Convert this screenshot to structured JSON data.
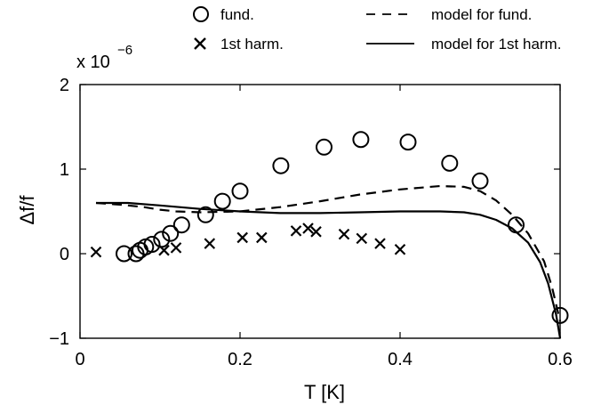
{
  "chart_data": {
    "type": "scatter",
    "title": "",
    "xlabel": "T [K]",
    "ylabel": "Δf/f",
    "xlim": [
      0,
      0.6
    ],
    "ylim": [
      -1,
      2
    ],
    "y_multiplier": {
      "base": "x 10",
      "exponent": "−6"
    },
    "x_ticks": [
      {
        "value": 0,
        "label": "0"
      },
      {
        "value": 0.2,
        "label": "0.2"
      },
      {
        "value": 0.4,
        "label": "0.4"
      },
      {
        "value": 0.6,
        "label": "0.6"
      }
    ],
    "y_ticks": [
      {
        "value": -1,
        "label": "−1"
      },
      {
        "value": 0,
        "label": "0"
      },
      {
        "value": 1,
        "label": "1"
      },
      {
        "value": 2,
        "label": "2"
      }
    ],
    "grid": false,
    "legend_placement": "top",
    "series": [
      {
        "name": "fund.",
        "marker": "circle",
        "points": [
          [
            0.055,
            0.0
          ],
          [
            0.07,
            0.0
          ],
          [
            0.075,
            0.04
          ],
          [
            0.082,
            0.08
          ],
          [
            0.09,
            0.11
          ],
          [
            0.102,
            0.17
          ],
          [
            0.113,
            0.24
          ],
          [
            0.127,
            0.34
          ],
          [
            0.157,
            0.46
          ],
          [
            0.178,
            0.62
          ],
          [
            0.2,
            0.74
          ],
          [
            0.251,
            1.04
          ],
          [
            0.305,
            1.26
          ],
          [
            0.351,
            1.35
          ],
          [
            0.41,
            1.32
          ],
          [
            0.462,
            1.07
          ],
          [
            0.5,
            0.86
          ],
          [
            0.545,
            0.34
          ],
          [
            0.6,
            -0.73
          ]
        ]
      },
      {
        "name": "1st harm.",
        "marker": "x",
        "points": [
          [
            0.02,
            0.02
          ],
          [
            0.105,
            0.04
          ],
          [
            0.12,
            0.07
          ],
          [
            0.162,
            0.12
          ],
          [
            0.203,
            0.19
          ],
          [
            0.227,
            0.19
          ],
          [
            0.27,
            0.27
          ],
          [
            0.285,
            0.3
          ],
          [
            0.295,
            0.26
          ],
          [
            0.33,
            0.23
          ],
          [
            0.352,
            0.18
          ],
          [
            0.375,
            0.12
          ],
          [
            0.4,
            0.05
          ]
        ]
      },
      {
        "name": "model for fund.",
        "line": "dashed",
        "points": [
          [
            0.02,
            0.6
          ],
          [
            0.05,
            0.58
          ],
          [
            0.08,
            0.55
          ],
          [
            0.1,
            0.52
          ],
          [
            0.12,
            0.5
          ],
          [
            0.15,
            0.49
          ],
          [
            0.2,
            0.5
          ],
          [
            0.25,
            0.55
          ],
          [
            0.3,
            0.62
          ],
          [
            0.35,
            0.7
          ],
          [
            0.4,
            0.76
          ],
          [
            0.45,
            0.8
          ],
          [
            0.48,
            0.79
          ],
          [
            0.5,
            0.74
          ],
          [
            0.52,
            0.63
          ],
          [
            0.54,
            0.46
          ],
          [
            0.56,
            0.24
          ],
          [
            0.58,
            -0.09
          ],
          [
            0.59,
            -0.4
          ],
          [
            0.6,
            -0.8
          ]
        ]
      },
      {
        "name": "model for 1st harm.",
        "line": "solid",
        "points": [
          [
            0.02,
            0.6
          ],
          [
            0.06,
            0.6
          ],
          [
            0.1,
            0.57
          ],
          [
            0.15,
            0.53
          ],
          [
            0.2,
            0.5
          ],
          [
            0.25,
            0.48
          ],
          [
            0.3,
            0.48
          ],
          [
            0.35,
            0.49
          ],
          [
            0.4,
            0.5
          ],
          [
            0.45,
            0.5
          ],
          [
            0.48,
            0.49
          ],
          [
            0.5,
            0.46
          ],
          [
            0.52,
            0.4
          ],
          [
            0.54,
            0.3
          ],
          [
            0.56,
            0.13
          ],
          [
            0.575,
            -0.1
          ],
          [
            0.585,
            -0.35
          ],
          [
            0.595,
            -0.72
          ],
          [
            0.6,
            -1.0
          ]
        ]
      }
    ]
  }
}
